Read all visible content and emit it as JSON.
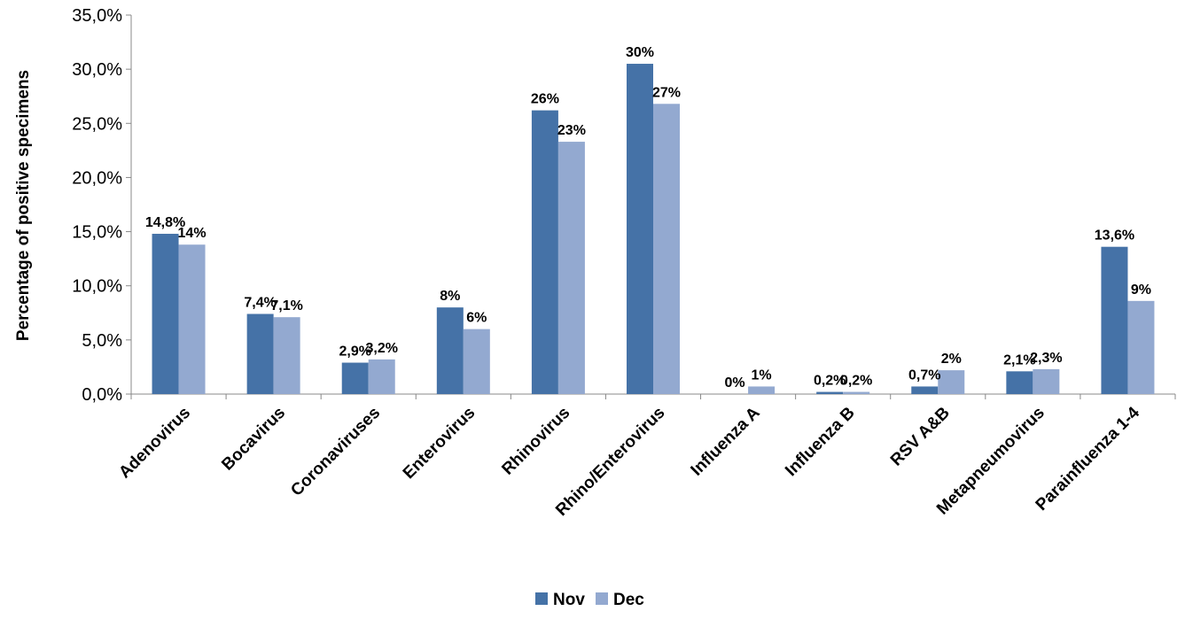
{
  "chart_data": {
    "type": "bar",
    "title": "",
    "xlabel": "",
    "ylabel": "Percentage of positive specimens",
    "ylim": [
      0,
      35
    ],
    "yticks": [
      0,
      5,
      10,
      15,
      20,
      25,
      30,
      35
    ],
    "ytick_labels": [
      "0,0%",
      "5,0%",
      "10,0%",
      "15,0%",
      "20,0%",
      "25,0%",
      "30,0%",
      "35,0%"
    ],
    "grid": false,
    "legend_position": "bottom",
    "categories": [
      "Adenovirus",
      "Bocavirus",
      "Coronaviruses",
      "Enterovirus",
      "Rhinovirus",
      "Rhino/Enterovirus",
      "Influenza A",
      "Influenza B",
      "RSV A&B",
      "Metapneumovirus",
      "Parainfluenza 1-4"
    ],
    "series": [
      {
        "name": "Nov",
        "color": "#4572A7",
        "values": [
          14.8,
          7.4,
          2.9,
          8.0,
          26.2,
          30.5,
          0,
          0.2,
          0.7,
          2.1,
          13.6
        ],
        "labels": [
          "14,8%",
          "7,4%",
          "2,9%",
          "8%",
          "26%",
          "30%",
          "0%",
          "0,2%",
          "0,7%",
          "2,1%",
          "13,6%"
        ]
      },
      {
        "name": "Dec",
        "color": "#93A9D0",
        "values": [
          13.8,
          7.1,
          3.2,
          6.0,
          23.3,
          26.8,
          0.7,
          0.2,
          2.2,
          2.3,
          8.6
        ],
        "labels": [
          "14%",
          "7,1%",
          "3,2%",
          "6%",
          "23%",
          "27%",
          "1%",
          "0,2%",
          "2%",
          "2,3%",
          "9%"
        ]
      }
    ]
  }
}
